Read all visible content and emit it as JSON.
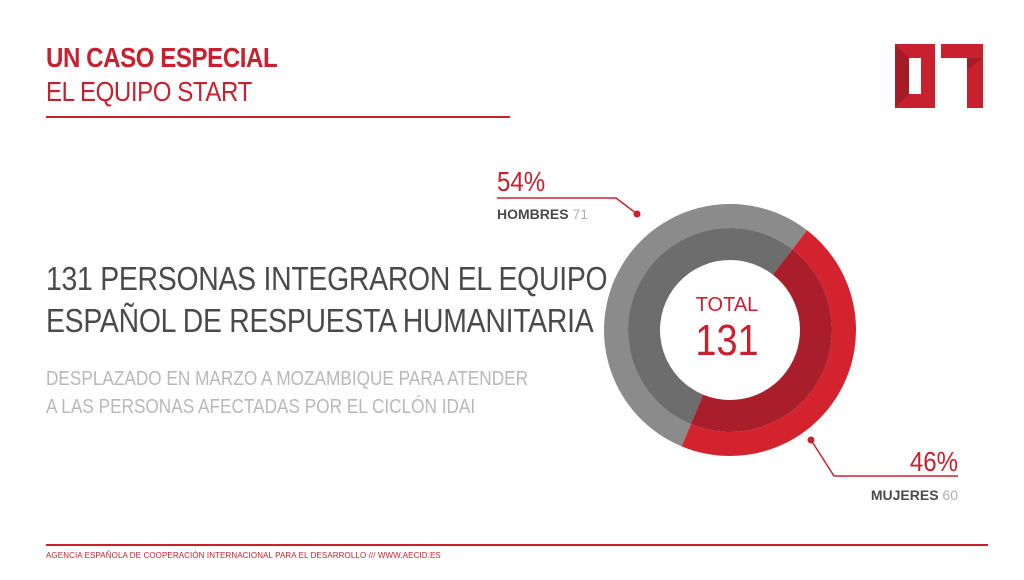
{
  "header": {
    "title": "UN CASO ESPECIAL",
    "subtitle": "EL EQUIPO START",
    "section_number": "07"
  },
  "main": {
    "headline_line1": "131 PERSONAS INTEGRARON EL EQUIPO",
    "headline_line2": "ESPAÑOL DE RESPUESTA HUMANITARIA",
    "description_line1": "DESPLAZADO EN MARZO A MOZAMBIQUE PARA ATENDER",
    "description_line2": "A LAS PERSONAS AFECTADAS POR EL CICLÓN IDAI"
  },
  "chart_data": {
    "type": "pie",
    "donut": true,
    "center_label": "TOTAL",
    "center_value": "131",
    "total": 131,
    "slices": [
      {
        "label": "HOMBRES",
        "value": 71,
        "percent": 54,
        "percent_label": "54%",
        "count_label": "71",
        "color": "#8b8b8b",
        "inner_color": "#6d6d6d"
      },
      {
        "label": "MUJERES",
        "value": 60,
        "percent": 46,
        "percent_label": "46%",
        "count_label": "60",
        "color": "#d2232f",
        "inner_color": "#a91e2a"
      }
    ]
  },
  "colors": {
    "accent": "#c8202f",
    "text_dark": "#4a4a4a",
    "text_muted": "#b8b8b8"
  },
  "footer": {
    "text": "AGENCIA ESPAÑOLA DE COOPERACIÓN INTERNACIONAL PARA EL DESARROLLO /// WWW.AECID.ES"
  }
}
